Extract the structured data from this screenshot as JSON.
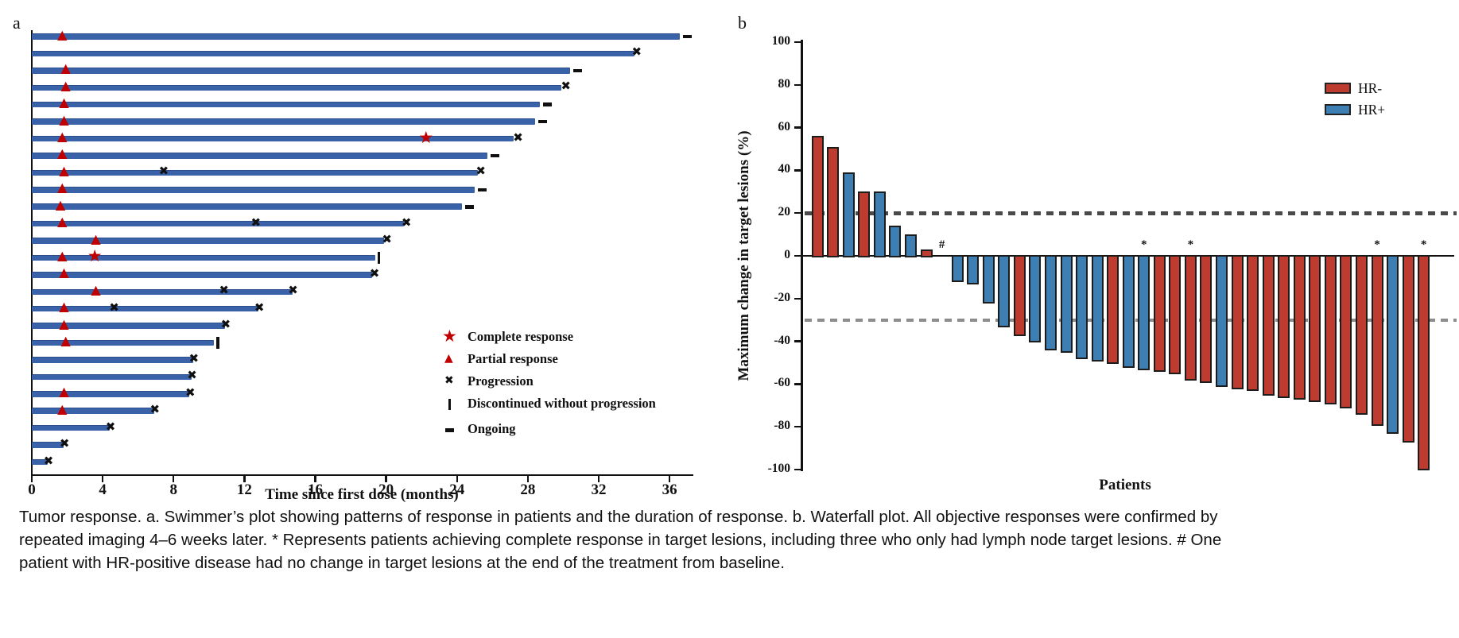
{
  "caption": "Tumor response. a. Swimmer’s plot showing patterns of response in patients and the duration of response. b. Waterfall plot. All objective responses were confirmed by repeated imaging 4–6 weeks later. * Represents patients achieving complete response in target lesions, including three who only had lymph node target lesions. # One patient with HR-positive disease had no change in target lesions at the end of the treatment from baseline.",
  "chart_data": [
    {
      "type": "swimmer",
      "title": "a",
      "xlabel": "Time since first dose (months)",
      "x_ticks": [
        0,
        4,
        8,
        12,
        16,
        20,
        24,
        28,
        32,
        36
      ],
      "xlim": [
        0,
        37.3
      ],
      "legend": [
        {
          "symbol": "star",
          "label": "Complete response"
        },
        {
          "symbol": "triangle",
          "label": "Partial response"
        },
        {
          "symbol": "x",
          "label": "Progression"
        },
        {
          "symbol": "bar",
          "label": "Discontinued without progression"
        },
        {
          "symbol": "dash",
          "label": "Ongoing"
        }
      ],
      "colors": {
        "bar": "#3A62A8",
        "response": "#C00000",
        "event": "#111111"
      },
      "patients": [
        {
          "duration": 36.6,
          "partial_response": 1.8,
          "ongoing": true
        },
        {
          "duration": 34.0,
          "progression": [
            34.2
          ]
        },
        {
          "duration": 30.4,
          "partial_response": 2.0,
          "ongoing": true
        },
        {
          "duration": 29.9,
          "partial_response": 2.0,
          "progression": [
            30.2
          ]
        },
        {
          "duration": 28.7,
          "partial_response": 1.9,
          "ongoing": true
        },
        {
          "duration": 28.4,
          "partial_response": 1.9,
          "ongoing": true
        },
        {
          "duration": 27.2,
          "partial_response": 1.8,
          "complete_response": 22.3,
          "progression": [
            27.5
          ]
        },
        {
          "duration": 25.7,
          "partial_response": 1.8,
          "ongoing": true
        },
        {
          "duration": 25.2,
          "partial_response": 1.9,
          "progression": [
            7.5,
            25.4
          ]
        },
        {
          "duration": 25.0,
          "partial_response": 1.8,
          "ongoing": true
        },
        {
          "duration": 24.3,
          "partial_response": 1.7,
          "ongoing": true
        },
        {
          "duration": 21.0,
          "partial_response": 1.8,
          "progression": [
            12.7,
            21.2
          ]
        },
        {
          "duration": 19.9,
          "partial_response": 3.7,
          "progression": [
            20.1
          ]
        },
        {
          "duration": 19.4,
          "partial_response": 1.8,
          "complete_response": 3.6,
          "discontinued": 19.6
        },
        {
          "duration": 19.2,
          "partial_response": 1.9,
          "progression": [
            19.4
          ]
        },
        {
          "duration": 14.7,
          "partial_response": 3.7,
          "progression": [
            10.9,
            14.8
          ]
        },
        {
          "duration": 12.8,
          "partial_response": 1.9,
          "progression": [
            4.7,
            12.9
          ]
        },
        {
          "duration": 10.9,
          "partial_response": 1.9,
          "progression": [
            11.0
          ]
        },
        {
          "duration": 10.3,
          "partial_response": 2.0,
          "discontinued": 10.5
        },
        {
          "duration": 9.1,
          "progression": [
            9.2
          ]
        },
        {
          "duration": 9.0,
          "progression": [
            9.1
          ]
        },
        {
          "duration": 8.9,
          "partial_response": 1.9,
          "progression": [
            9.0
          ]
        },
        {
          "duration": 6.9,
          "partial_response": 1.8,
          "progression": [
            7.0
          ]
        },
        {
          "duration": 4.4,
          "progression": [
            4.5
          ]
        },
        {
          "duration": 1.8,
          "progression": [
            1.9
          ]
        },
        {
          "duration": 0.9,
          "progression": [
            1.0
          ]
        }
      ]
    },
    {
      "type": "waterfall",
      "title": "b",
      "ylabel": "Maximum change in target lesions (%)",
      "xlabel": "Patients",
      "y_ticks": [
        100,
        80,
        60,
        40,
        20,
        0,
        -20,
        -40,
        -60,
        -80,
        -100
      ],
      "ylim": [
        -100,
        100
      ],
      "reference_lines": [
        20,
        -30
      ],
      "legend": [
        {
          "label": "HR-",
          "color": "#BE3B2F"
        },
        {
          "label": "HR+",
          "color": "#3D7FB2"
        }
      ],
      "bars": [
        {
          "value": 56,
          "group": "HR-"
        },
        {
          "value": 51,
          "group": "HR-"
        },
        {
          "value": 39,
          "group": "HR+"
        },
        {
          "value": 30,
          "group": "HR-"
        },
        {
          "value": 30,
          "group": "HR+"
        },
        {
          "value": 14,
          "group": "HR+"
        },
        {
          "value": 10,
          "group": "HR+"
        },
        {
          "value": 3,
          "group": "HR-"
        },
        {
          "value": 0,
          "group": "HR+",
          "marker": "#"
        },
        {
          "value": -12,
          "group": "HR+"
        },
        {
          "value": -13,
          "group": "HR+"
        },
        {
          "value": -22,
          "group": "HR+"
        },
        {
          "value": -33,
          "group": "HR+"
        },
        {
          "value": -37,
          "group": "HR-"
        },
        {
          "value": -40,
          "group": "HR+"
        },
        {
          "value": -44,
          "group": "HR+"
        },
        {
          "value": -45,
          "group": "HR+"
        },
        {
          "value": -48,
          "group": "HR+"
        },
        {
          "value": -49,
          "group": "HR+"
        },
        {
          "value": -50,
          "group": "HR-"
        },
        {
          "value": -52,
          "group": "HR+"
        },
        {
          "value": -53,
          "group": "HR+",
          "marker": "*"
        },
        {
          "value": -54,
          "group": "HR-"
        },
        {
          "value": -55,
          "group": "HR-"
        },
        {
          "value": -58,
          "group": "HR-",
          "marker": "*"
        },
        {
          "value": -59,
          "group": "HR-"
        },
        {
          "value": -61,
          "group": "HR+"
        },
        {
          "value": -62,
          "group": "HR-"
        },
        {
          "value": -63,
          "group": "HR-"
        },
        {
          "value": -65,
          "group": "HR-"
        },
        {
          "value": -66,
          "group": "HR-"
        },
        {
          "value": -67,
          "group": "HR-"
        },
        {
          "value": -68,
          "group": "HR-"
        },
        {
          "value": -69,
          "group": "HR-"
        },
        {
          "value": -71,
          "group": "HR-"
        },
        {
          "value": -74,
          "group": "HR-"
        },
        {
          "value": -79,
          "group": "HR-",
          "marker": "*"
        },
        {
          "value": -83,
          "group": "HR+"
        },
        {
          "value": -87,
          "group": "HR-"
        },
        {
          "value": -100,
          "group": "HR-",
          "marker": "*"
        }
      ]
    }
  ]
}
